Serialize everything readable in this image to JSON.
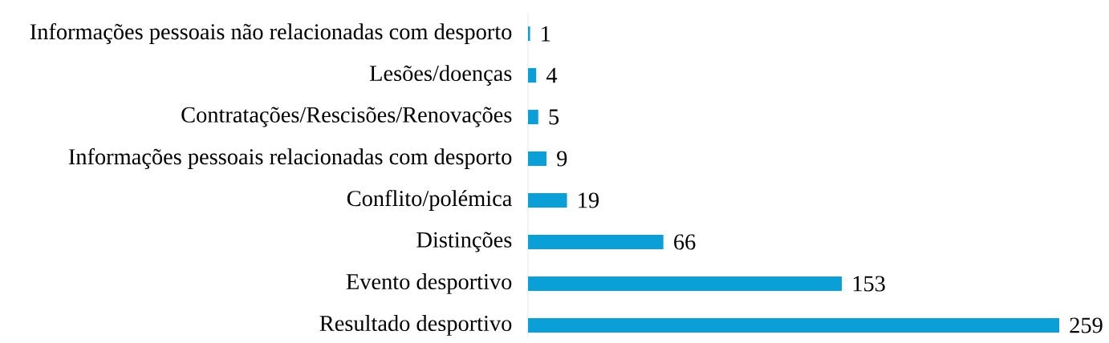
{
  "chart_data": {
    "type": "bar",
    "orientation": "horizontal",
    "categories": [
      "Informações pessoais não relacionadas com desporto",
      "Lesões/doenças",
      "Contratações/Rescisões/Renovações",
      "Informações pessoais relacionadas com desporto",
      "Conflito/polémica",
      "Distinções",
      "Evento desportivo",
      "Resultado desportivo"
    ],
    "values": [
      1,
      4,
      5,
      9,
      19,
      66,
      153,
      259
    ],
    "color": "#0a9fd6",
    "data_labels": true
  }
}
